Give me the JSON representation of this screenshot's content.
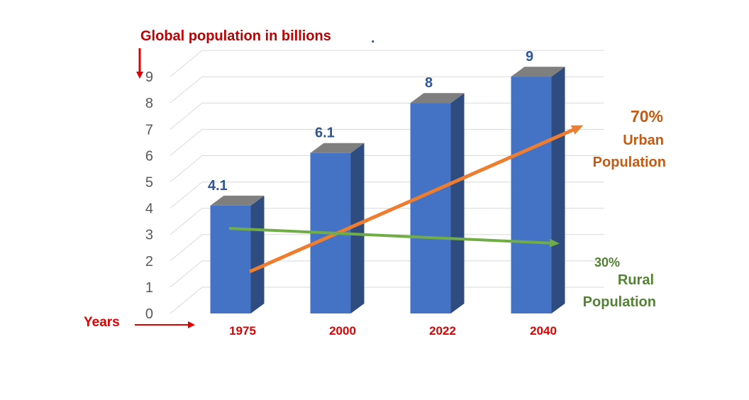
{
  "chart_data": {
    "type": "bar",
    "ylabel": "Global population in billions",
    "ylabel_suffix": ".",
    "xlabel": "Years",
    "categories": [
      "1975",
      "2000",
      "2022",
      "2040"
    ],
    "values": [
      4.1,
      6.1,
      8,
      9
    ],
    "value_labels": [
      "4.1",
      "6.1",
      "8",
      "9"
    ],
    "yticks": [
      "0",
      "1",
      "2",
      "3",
      "4",
      "5",
      "6",
      "7",
      "8",
      "9"
    ],
    "ylim": [
      0,
      9
    ],
    "grid": true,
    "annotations": {
      "urban": {
        "percent": "70%",
        "line1": "Urban",
        "line2": "Population"
      },
      "rural": {
        "percent": "30%",
        "line1": "Rural",
        "line2": "Population"
      }
    },
    "colors": {
      "bar_front": "#4472C4",
      "bar_side": "#2F4C80",
      "bar_top": "#7F7F7F",
      "value_label": "#2F5597",
      "axis_text": "#595959",
      "title": "#C00000",
      "category": "#E00000",
      "urban": "#ED7D31",
      "urban_text": "#C55A11",
      "rural": "#70AD47",
      "rural_text": "#548235",
      "grid": "#D9D9D9"
    }
  }
}
